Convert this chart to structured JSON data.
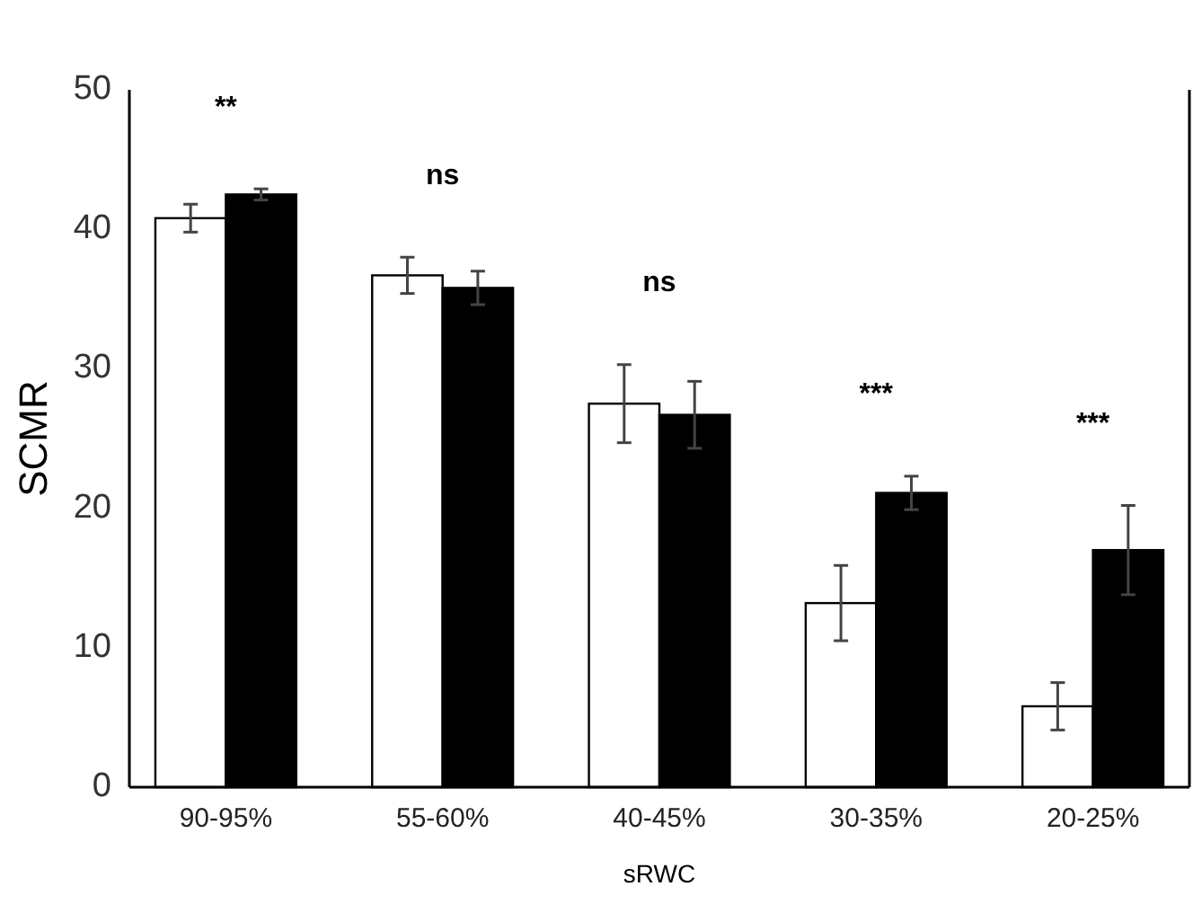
{
  "chart_data": {
    "type": "bar",
    "xlabel": "sRWC",
    "ylabel": "SCMR",
    "categories": [
      "90-95%",
      "55-60%",
      "40-45%",
      "30-35%",
      "20-25%"
    ],
    "series": [
      {
        "color": "#ffffff",
        "values": [
          40.8,
          36.7,
          27.5,
          13.2,
          5.8
        ],
        "errors": [
          1.0,
          1.3,
          2.8,
          2.7,
          1.7
        ]
      },
      {
        "color": "#000000",
        "values": [
          42.5,
          35.8,
          26.7,
          21.1,
          17.0
        ],
        "errors": [
          0.4,
          1.2,
          2.4,
          1.2,
          3.2
        ]
      }
    ],
    "annotations": [
      "**",
      "ns",
      "ns",
      "***",
      "***"
    ],
    "ylim": [
      0,
      50
    ],
    "yticks": [
      0,
      10,
      20,
      30,
      40,
      50
    ],
    "grid": false
  }
}
